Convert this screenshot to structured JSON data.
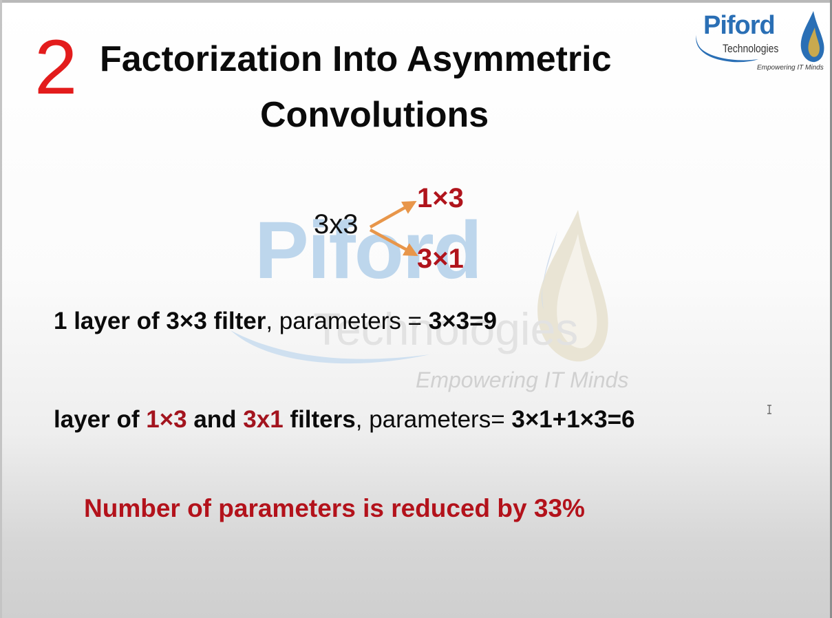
{
  "slide": {
    "number": "2",
    "title_line1": "Factorization Into Asymmetric",
    "title_line2": "Convolutions"
  },
  "logo": {
    "name": "Piford",
    "subtitle": "Technologies",
    "tagline": "Empowering IT Minds"
  },
  "watermark": {
    "name": "Piford",
    "subtitle": "Technologies",
    "tagline": "Empowering IT Minds"
  },
  "diagram": {
    "source": "3x3",
    "target_top": "1×3",
    "target_bottom": "3×1"
  },
  "statement1": {
    "part1": "1 layer of 3×3 filter",
    "part2": ", parameters = ",
    "part3": "3×3=9"
  },
  "statement2": {
    "part1": "layer of ",
    "part2": "1×3",
    "part3": " and ",
    "part4": "3x1",
    "part5": " filters",
    "part6": ", parameters= ",
    "part7": "3×1+1×3=6"
  },
  "conclusion": "Number of parameters is reduced by 33%",
  "colors": {
    "slide_number": "#e31c1c",
    "accent_red": "#a3141e",
    "arrow_orange": "#e8964a",
    "logo_blue": "#2a6fb5"
  }
}
